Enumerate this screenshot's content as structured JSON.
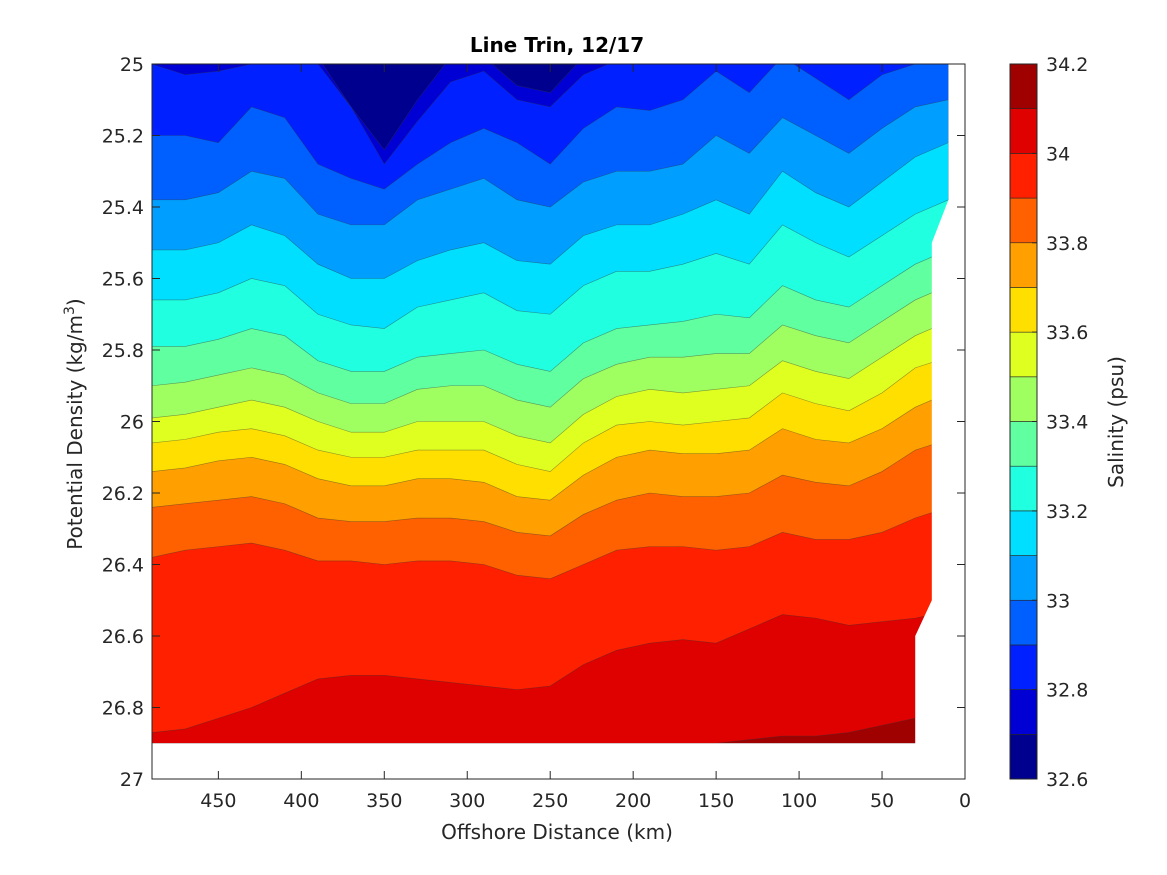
{
  "chart_data": {
    "type": "contourf",
    "title": "Line Trin, 12/17",
    "xlabel": "Offshore Distance (km)",
    "ylabel": "Potential Density (kg/m",
    "ylabel_sup": "3",
    "ylabel_close": ")",
    "colorbar_label": "Salinity (psu)",
    "xlim": [
      490,
      0
    ],
    "ylim": [
      25,
      27
    ],
    "y_reversed": true,
    "x_ticks": [
      "450",
      "400",
      "350",
      "300",
      "250",
      "200",
      "150",
      "100",
      "50",
      "0"
    ],
    "x_tick_values": [
      450,
      400,
      350,
      300,
      250,
      200,
      150,
      100,
      50,
      0
    ],
    "y_ticks": [
      "25",
      "25.2",
      "25.4",
      "25.6",
      "25.8",
      "26",
      "26.2",
      "26.4",
      "26.6",
      "26.8",
      "27"
    ],
    "y_tick_values": [
      25,
      25.2,
      25.4,
      25.6,
      25.8,
      26,
      26.2,
      26.4,
      26.6,
      26.8,
      27
    ],
    "colorbar_ticks": [
      "32.6",
      "32.8",
      "33",
      "33.2",
      "33.4",
      "33.6",
      "33.8",
      "34",
      "34.2"
    ],
    "colorbar_tick_values": [
      32.6,
      32.8,
      33,
      33.2,
      33.4,
      33.6,
      33.8,
      34,
      34.2
    ],
    "levels": [
      32.6,
      32.7,
      32.8,
      32.9,
      33.0,
      33.1,
      33.2,
      33.3,
      33.4,
      33.5,
      33.6,
      33.7,
      33.8,
      33.9,
      34.0,
      34.1,
      34.2
    ],
    "colors": [
      "#00008f",
      "#0000d4",
      "#0020ff",
      "#0060ff",
      "#009fff",
      "#00dfff",
      "#20ffdf",
      "#60ff9f",
      "#9fff60",
      "#dfff20",
      "#ffdf00",
      "#ff9f00",
      "#ff6000",
      "#ff2000",
      "#df0000",
      "#9f0000"
    ],
    "data_x_extent_top": [
      490,
      10
    ],
    "data_y_bottom": 26.9,
    "x_nodes": [
      490,
      470,
      450,
      430,
      410,
      390,
      370,
      350,
      330,
      310,
      290,
      270,
      250,
      230,
      210,
      190,
      170,
      150,
      130,
      110,
      90,
      70,
      50,
      30,
      10
    ],
    "boundaries": [
      {
        "level": 32.7,
        "y": [
          24.98,
          24.98,
          24.98,
          24.98,
          24.98,
          24.98,
          25.12,
          25.24,
          25.1,
          24.98,
          24.98,
          25.06,
          25.08,
          24.98,
          24.98,
          24.98,
          24.98,
          24.98,
          24.98,
          24.98,
          24.98,
          24.98,
          24.98,
          24.98,
          24.98
        ]
      },
      {
        "level": 32.8,
        "y": [
          25.0,
          25.03,
          25.02,
          25.0,
          24.98,
          25.0,
          25.12,
          25.28,
          25.16,
          25.05,
          25.02,
          25.1,
          25.12,
          25.03,
          24.99,
          24.98,
          24.98,
          24.98,
          24.98,
          24.98,
          24.98,
          24.98,
          24.98,
          24.98,
          24.98
        ]
      },
      {
        "level": 32.9,
        "y": [
          25.2,
          25.2,
          25.22,
          25.12,
          25.15,
          25.28,
          25.32,
          25.35,
          25.28,
          25.22,
          25.18,
          25.22,
          25.28,
          25.18,
          25.12,
          25.13,
          25.1,
          25.02,
          25.08,
          24.98,
          25.04,
          25.1,
          25.03,
          25.0,
          24.98
        ]
      },
      {
        "level": 33.0,
        "y": [
          25.38,
          25.38,
          25.36,
          25.3,
          25.32,
          25.42,
          25.45,
          25.45,
          25.38,
          25.35,
          25.32,
          25.38,
          25.4,
          25.33,
          25.3,
          25.3,
          25.28,
          25.2,
          25.25,
          25.15,
          25.2,
          25.25,
          25.18,
          25.12,
          25.1
        ]
      },
      {
        "level": 33.1,
        "y": [
          25.52,
          25.52,
          25.5,
          25.45,
          25.48,
          25.56,
          25.6,
          25.6,
          25.55,
          25.52,
          25.5,
          25.55,
          25.56,
          25.48,
          25.45,
          25.45,
          25.42,
          25.38,
          25.42,
          25.3,
          25.36,
          25.4,
          25.33,
          25.26,
          25.22
        ]
      },
      {
        "level": 33.2,
        "y": [
          25.66,
          25.66,
          25.64,
          25.6,
          25.62,
          25.7,
          25.73,
          25.74,
          25.68,
          25.66,
          25.64,
          25.69,
          25.7,
          25.62,
          25.58,
          25.58,
          25.56,
          25.53,
          25.56,
          25.45,
          25.5,
          25.54,
          25.48,
          25.42,
          25.38
        ]
      },
      {
        "level": 33.3,
        "y": [
          25.79,
          25.79,
          25.77,
          25.74,
          25.76,
          25.83,
          25.86,
          25.86,
          25.82,
          25.81,
          25.8,
          25.84,
          25.86,
          25.78,
          25.74,
          25.73,
          25.72,
          25.7,
          25.71,
          25.62,
          25.66,
          25.68,
          25.62,
          25.56,
          25.52
        ]
      },
      {
        "level": 33.4,
        "y": [
          25.9,
          25.89,
          25.87,
          25.85,
          25.87,
          25.92,
          25.95,
          25.95,
          25.91,
          25.9,
          25.9,
          25.94,
          25.96,
          25.88,
          25.84,
          25.82,
          25.82,
          25.81,
          25.81,
          25.73,
          25.76,
          25.78,
          25.72,
          25.66,
          25.62
        ]
      },
      {
        "level": 33.5,
        "y": [
          25.99,
          25.98,
          25.96,
          25.94,
          25.96,
          26.0,
          26.03,
          26.03,
          26.0,
          26.0,
          26.0,
          26.04,
          26.06,
          25.98,
          25.93,
          25.91,
          25.92,
          25.91,
          25.9,
          25.83,
          25.86,
          25.88,
          25.82,
          25.76,
          25.72
        ]
      },
      {
        "level": 33.6,
        "y": [
          26.06,
          26.05,
          26.03,
          26.02,
          26.04,
          26.08,
          26.1,
          26.1,
          26.08,
          26.08,
          26.08,
          26.12,
          26.14,
          26.06,
          26.01,
          26.0,
          26.01,
          26.0,
          25.99,
          25.92,
          25.95,
          25.97,
          25.92,
          25.85,
          25.82
        ]
      },
      {
        "level": 33.7,
        "y": [
          26.14,
          26.13,
          26.11,
          26.1,
          26.12,
          26.16,
          26.18,
          26.18,
          26.16,
          26.16,
          26.17,
          26.21,
          26.22,
          26.15,
          26.1,
          26.08,
          26.09,
          26.09,
          26.08,
          26.02,
          26.05,
          26.06,
          26.02,
          25.96,
          25.92
        ]
      },
      {
        "level": 33.8,
        "y": [
          26.24,
          26.23,
          26.22,
          26.21,
          26.23,
          26.27,
          26.28,
          26.28,
          26.27,
          26.27,
          26.28,
          26.31,
          26.32,
          26.26,
          26.22,
          26.2,
          26.21,
          26.21,
          26.2,
          26.15,
          26.17,
          26.18,
          26.14,
          26.08,
          26.05
        ]
      },
      {
        "level": 33.9,
        "y": [
          26.38,
          26.36,
          26.35,
          26.34,
          26.36,
          26.39,
          26.39,
          26.4,
          26.39,
          26.39,
          26.4,
          26.43,
          26.44,
          26.4,
          26.36,
          26.35,
          26.35,
          26.36,
          26.35,
          26.31,
          26.33,
          26.33,
          26.31,
          26.27,
          26.24
        ]
      },
      {
        "level": 34.0,
        "y": [
          26.87,
          26.86,
          26.83,
          26.8,
          26.76,
          26.72,
          26.71,
          26.71,
          26.72,
          26.73,
          26.74,
          26.75,
          26.74,
          26.68,
          26.64,
          26.62,
          26.61,
          26.62,
          26.58,
          26.54,
          26.55,
          26.57,
          26.56,
          26.55,
          26.53
        ]
      },
      {
        "level": 34.1,
        "y": [
          26.92,
          26.92,
          26.92,
          26.92,
          26.92,
          26.92,
          26.92,
          26.92,
          26.92,
          26.92,
          26.92,
          26.92,
          26.92,
          26.92,
          26.92,
          26.92,
          26.92,
          26.9,
          26.89,
          26.88,
          26.88,
          26.87,
          26.85,
          26.83,
          26.83
        ]
      }
    ],
    "blank_region": [
      [
        10,
        24.98
      ],
      [
        10,
        25.38
      ],
      [
        20,
        25.5
      ],
      [
        20,
        26.5
      ],
      [
        30,
        26.6
      ],
      [
        30,
        26.9
      ]
    ]
  }
}
